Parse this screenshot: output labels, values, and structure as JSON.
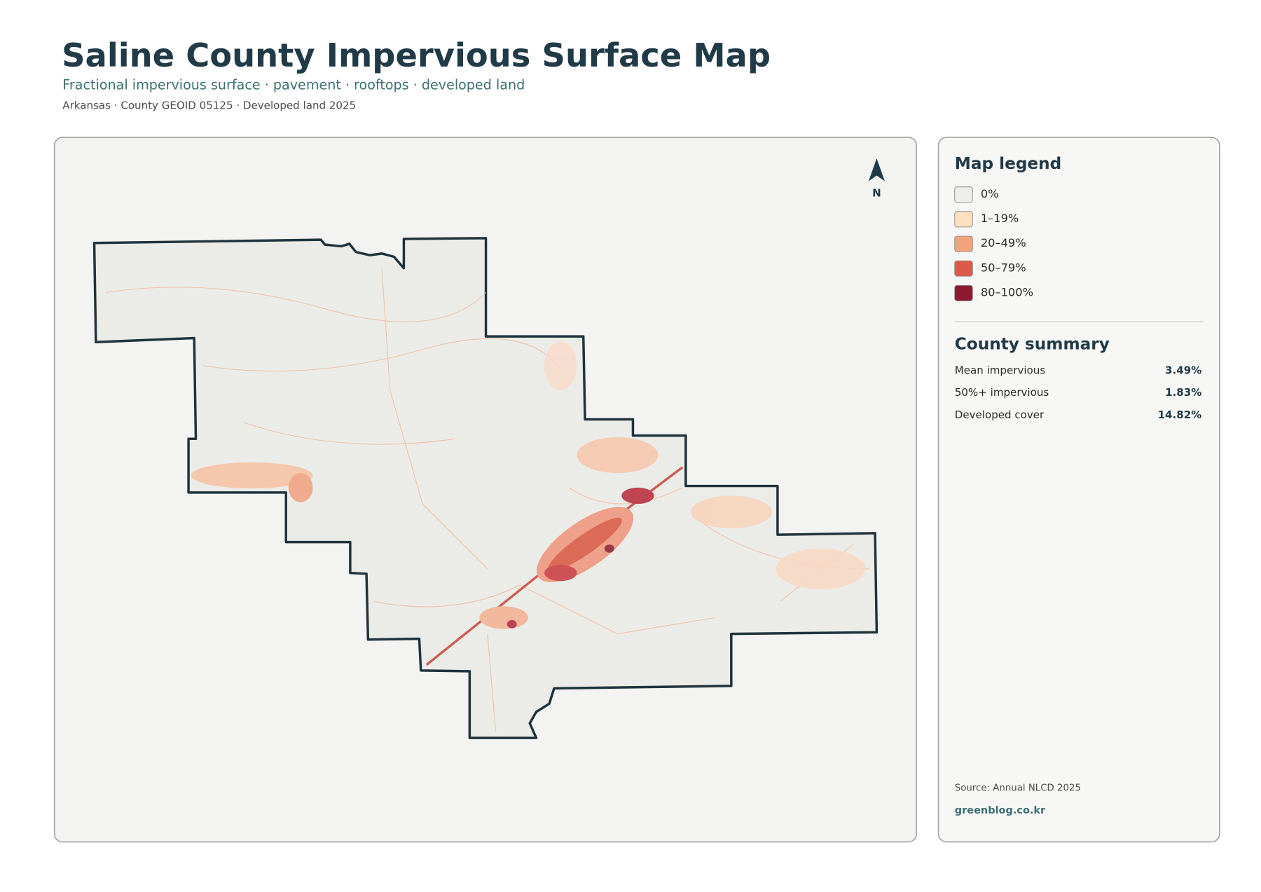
{
  "header": {
    "title": "Saline County Impervious Surface Map",
    "subtitle": "Fractional impervious surface · pavement · rooftops · developed land",
    "meta": "Arkansas · County GEOID 05125 · Developed land 2025"
  },
  "map": {
    "north_label": "N"
  },
  "legend": {
    "title": "Map legend",
    "items": [
      {
        "label": "0%",
        "color": "#eeeeea"
      },
      {
        "label": "1–19%",
        "color": "#fde0c0"
      },
      {
        "label": "20–49%",
        "color": "#f4a47c"
      },
      {
        "label": "50–79%",
        "color": "#dd5a4a"
      },
      {
        "label": "80–100%",
        "color": "#8c1a2e"
      }
    ]
  },
  "summary": {
    "title": "County summary",
    "rows": [
      {
        "label": "Mean impervious",
        "value": "3.49%"
      },
      {
        "label": "50%+ impervious",
        "value": "1.83%"
      },
      {
        "label": "Developed cover",
        "value": "14.82%"
      }
    ]
  },
  "footer": {
    "source": "Source: Annual NLCD 2025",
    "site": "greenblog.co.kr"
  }
}
